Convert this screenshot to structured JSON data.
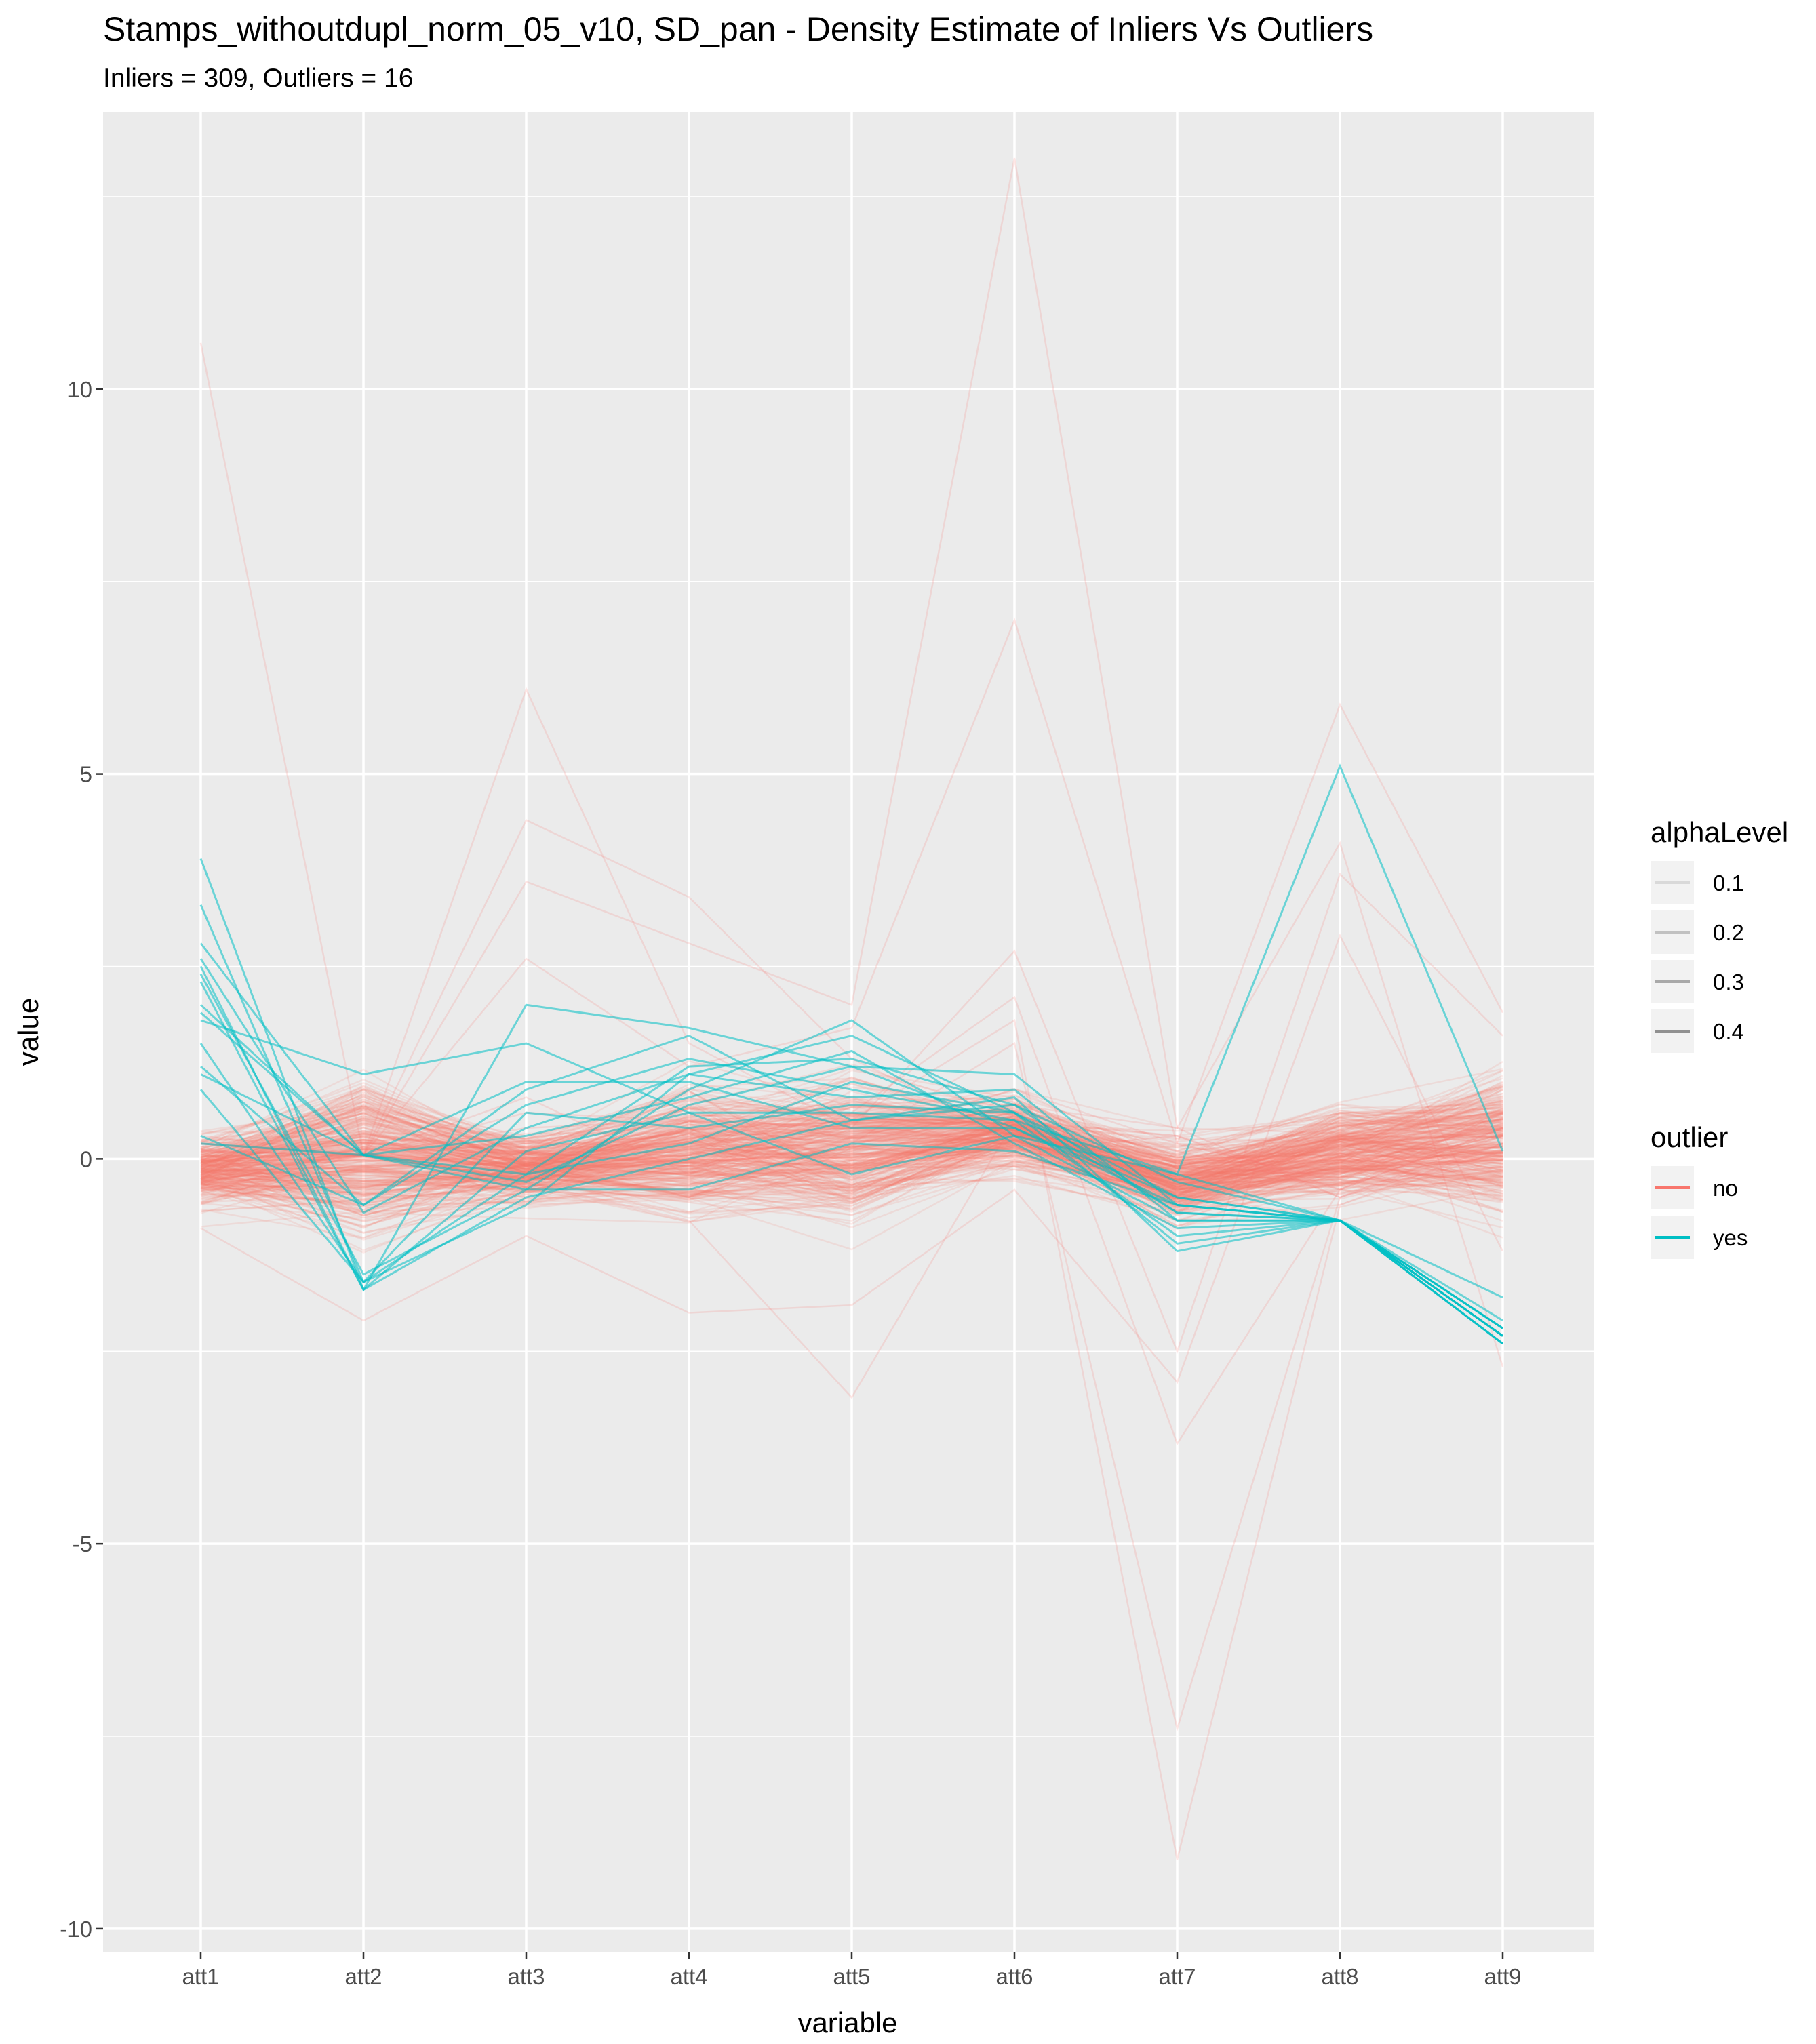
{
  "chart_data": {
    "type": "line",
    "subtype": "parallel-coordinates",
    "title": "Stamps_withoutdupl_norm_05_v10, SD_pan - Density Estimate of Inliers Vs Outliers",
    "subtitle": "Inliers = 309, Outliers = 16",
    "xlabel": "variable",
    "ylabel": "value",
    "categories": [
      "att1",
      "att2",
      "att3",
      "att4",
      "att5",
      "att6",
      "att7",
      "att8",
      "att9"
    ],
    "ylim": [
      -10.3,
      13.6
    ],
    "yticks": [
      -10,
      -5,
      0,
      5,
      10
    ],
    "grid": true,
    "background": "#ebebeb",
    "legend_position": "right",
    "legends": [
      {
        "title": "alphaLevel",
        "entries": [
          {
            "label": "0.1",
            "alpha": 0.1
          },
          {
            "label": "0.2",
            "alpha": 0.2
          },
          {
            "label": "0.3",
            "alpha": 0.3
          },
          {
            "label": "0.4",
            "alpha": 0.4
          }
        ]
      },
      {
        "title": "outlier",
        "entries": [
          {
            "label": "no",
            "color": "#f8766d"
          },
          {
            "label": "yes",
            "color": "#00bfc4"
          }
        ]
      }
    ],
    "series": [
      {
        "outlier": "no",
        "color": "#f8766d",
        "alpha": 0.1,
        "count": 309,
        "band_low": [
          -0.9,
          -1.9,
          -0.9,
          -1.3,
          -1.4,
          -0.5,
          -1.2,
          -1.0,
          -1.4
        ],
        "band_high": [
          0.6,
          1.9,
          0.6,
          1.5,
          1.6,
          1.2,
          0.6,
          1.1,
          1.8
        ],
        "extreme_lines": [
          [
            10.6,
            0.05,
            0.8,
            -0.2,
            0.6,
            0.1,
            0.3,
            -0.5,
            0.3
          ],
          [
            0.2,
            0.05,
            6.1,
            1.5,
            0.4,
            0.5,
            0.3,
            -0.4,
            0.4
          ],
          [
            -0.3,
            0.05,
            4.4,
            3.4,
            1.3,
            0.3,
            -0.1,
            -0.2,
            0.5
          ],
          [
            0.3,
            0.05,
            3.6,
            2.8,
            2.0,
            13.0,
            0.4,
            -0.5,
            0.2
          ],
          [
            -0.4,
            0.05,
            2.6,
            1.2,
            1.7,
            7.0,
            0.2,
            -0.3,
            -0.1
          ],
          [
            0.1,
            0.05,
            -0.3,
            -0.8,
            -3.1,
            0.5,
            0.1,
            -0.4,
            0.4
          ],
          [
            0.2,
            0.05,
            -0.2,
            0.3,
            0.5,
            1.8,
            -9.1,
            -0.6,
            0.2
          ],
          [
            -0.2,
            0.05,
            -0.1,
            0.4,
            0.2,
            1.5,
            -7.4,
            -0.5,
            0.1
          ],
          [
            0.0,
            0.05,
            0.4,
            0.5,
            0.6,
            2.1,
            -3.7,
            -0.4,
            0.6
          ],
          [
            0.1,
            0.05,
            0.2,
            0.6,
            0.3,
            0.9,
            0.2,
            5.9,
            1.9
          ],
          [
            -0.1,
            0.05,
            0.1,
            -0.1,
            0.2,
            0.7,
            0.4,
            4.1,
            -2.7
          ],
          [
            0.2,
            0.05,
            0.6,
            0.5,
            0.4,
            2.7,
            -2.5,
            3.7,
            1.6
          ],
          [
            -0.9,
            -2.1,
            -1.0,
            -2.0,
            -1.9,
            -0.4,
            -2.9,
            2.9,
            -1.2
          ]
        ]
      },
      {
        "outlier": "yes",
        "color": "#00bfc4",
        "alpha": 0.4,
        "count": 16,
        "lines": [
          [
            3.9,
            -1.7,
            0.1,
            0.6,
            0.6,
            0.5,
            -0.2,
            -0.8,
            -2.2
          ],
          [
            3.3,
            -1.6,
            -0.2,
            1.2,
            1.3,
            0.7,
            -0.3,
            -0.8,
            -2.3
          ],
          [
            2.6,
            -0.7,
            0.4,
            1.1,
            1.6,
            0.6,
            -0.5,
            -0.8,
            -2.4
          ],
          [
            2.5,
            -1.7,
            2.0,
            1.7,
            1.2,
            1.1,
            -0.6,
            -0.8,
            -2.3
          ],
          [
            2.4,
            -1.5,
            -0.4,
            0.9,
            1.8,
            0.3,
            -0.2,
            5.1,
            0.1
          ],
          [
            2.8,
            0.05,
            -0.2,
            0.2,
            1.0,
            0.6,
            -0.7,
            -0.8,
            -2.2
          ],
          [
            2.3,
            -1.7,
            -0.5,
            0.0,
            0.5,
            0.8,
            -1.2,
            -0.8,
            -1.8
          ],
          [
            1.9,
            0.05,
            1.0,
            1.0,
            0.4,
            0.4,
            -0.6,
            -0.8,
            -2.3
          ],
          [
            1.8,
            1.1,
            1.5,
            0.6,
            -0.2,
            0.3,
            -0.8,
            -0.8,
            -2.4
          ],
          [
            1.2,
            -0.6,
            0.7,
            1.3,
            0.9,
            0.5,
            -1.0,
            -0.8,
            -2.2
          ],
          [
            1.1,
            0.05,
            0.3,
            0.8,
            1.4,
            0.2,
            -0.9,
            -0.8,
            -2.3
          ],
          [
            0.9,
            -1.6,
            0.6,
            0.4,
            0.7,
            0.6,
            -1.1,
            -0.8,
            -2.4
          ],
          [
            0.2,
            0.05,
            -0.4,
            -0.4,
            0.2,
            0.1,
            -0.6,
            -0.8,
            -2.2
          ],
          [
            0.3,
            -0.6,
            0.9,
            1.6,
            0.5,
            0.7,
            -0.7,
            -0.8,
            -2.3
          ],
          [
            2.0,
            0.05,
            -0.3,
            0.7,
            1.2,
            0.4,
            -0.5,
            -0.8,
            -2.1
          ],
          [
            1.5,
            -1.6,
            -0.6,
            1.1,
            0.8,
            0.9,
            -0.8,
            -0.8,
            -2.4
          ]
        ]
      }
    ]
  }
}
